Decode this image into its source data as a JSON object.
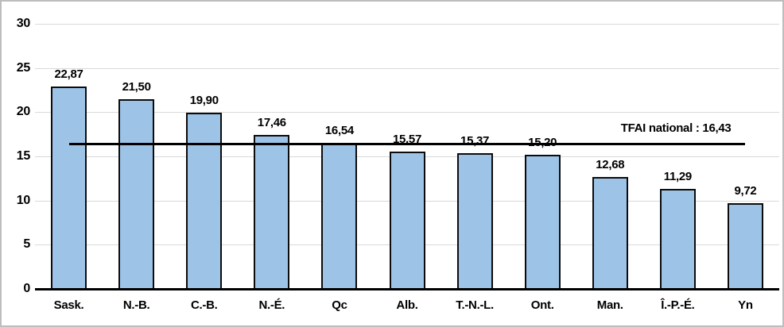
{
  "chart_data": {
    "type": "bar",
    "categories": [
      "Sask.",
      "N.-B.",
      "C.-B.",
      "N.-É.",
      "Qc",
      "Alb.",
      "T.-N.-L.",
      "Ont.",
      "Man.",
      "Î.-P.-É.",
      "Yn"
    ],
    "values": [
      22.87,
      21.5,
      19.9,
      17.46,
      16.54,
      15.57,
      15.37,
      15.2,
      12.68,
      11.29,
      9.72
    ],
    "value_labels": [
      "22,87",
      "21,50",
      "19,90",
      "17,46",
      "16,54",
      "15,57",
      "15,37",
      "15,20",
      "12,68",
      "11,29",
      "9,72"
    ],
    "title": "",
    "xlabel": "",
    "ylabel": "",
    "ylim": [
      0,
      30
    ],
    "y_ticks": [
      0,
      5,
      10,
      15,
      20,
      25,
      30
    ],
    "grid": true,
    "legend_position": "none",
    "reference_line": {
      "value": 16.43,
      "label": "TFAI national : 16,43"
    },
    "colors": {
      "bar_fill": "#9DC3E6",
      "bar_border": "#0C0C0C",
      "gridline": "#D9D9D9",
      "axis": "#000000",
      "reference_line": "#000000",
      "text": "#000000",
      "frame_border": "#BDBDBD",
      "background": "#FFFFFF"
    }
  }
}
